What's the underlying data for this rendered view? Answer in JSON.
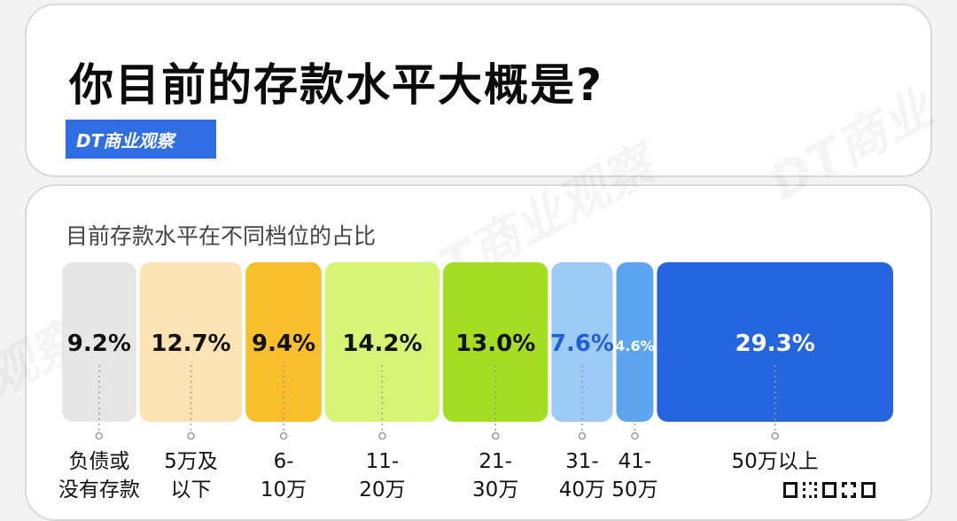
{
  "title": "你目前的存款水平大概是?",
  "brand": "DT商业观察",
  "subtitle": "目前存款水平在不同档位的占比",
  "chart_data": {
    "type": "bar",
    "title": "目前存款水平在不同档位的占比",
    "categories": [
      "负债或没有存款",
      "5万及以下",
      "6-10万",
      "11-20万",
      "21-30万",
      "31-40万",
      "41-50万",
      "50万以上"
    ],
    "category_lines": [
      [
        "负债或",
        "没有存款"
      ],
      [
        "5万及",
        "以下"
      ],
      [
        "6-",
        "10万"
      ],
      [
        "11-",
        "20万"
      ],
      [
        "21-",
        "30万"
      ],
      [
        "31-",
        "40万"
      ],
      [
        "41-",
        "50万"
      ],
      [
        "50万以上"
      ]
    ],
    "values": [
      9.2,
      12.7,
      9.4,
      14.2,
      13.0,
      7.6,
      4.6,
      29.3
    ],
    "labels": [
      "9.2%",
      "12.7%",
      "9.4%",
      "14.2%",
      "13.0%",
      "7.6%",
      "4.6%",
      "29.3%"
    ],
    "colors": [
      "#e6e6e6",
      "#fbe3b4",
      "#f7bf2a",
      "#d7f575",
      "#a4dd22",
      "#9dcaf7",
      "#5ea5f0",
      "#2566e0"
    ],
    "label_colors": [
      "#111111",
      "#111111",
      "#111111",
      "#111111",
      "#111111",
      "#1f5fd8",
      "#ffffff",
      "#ffffff"
    ]
  }
}
